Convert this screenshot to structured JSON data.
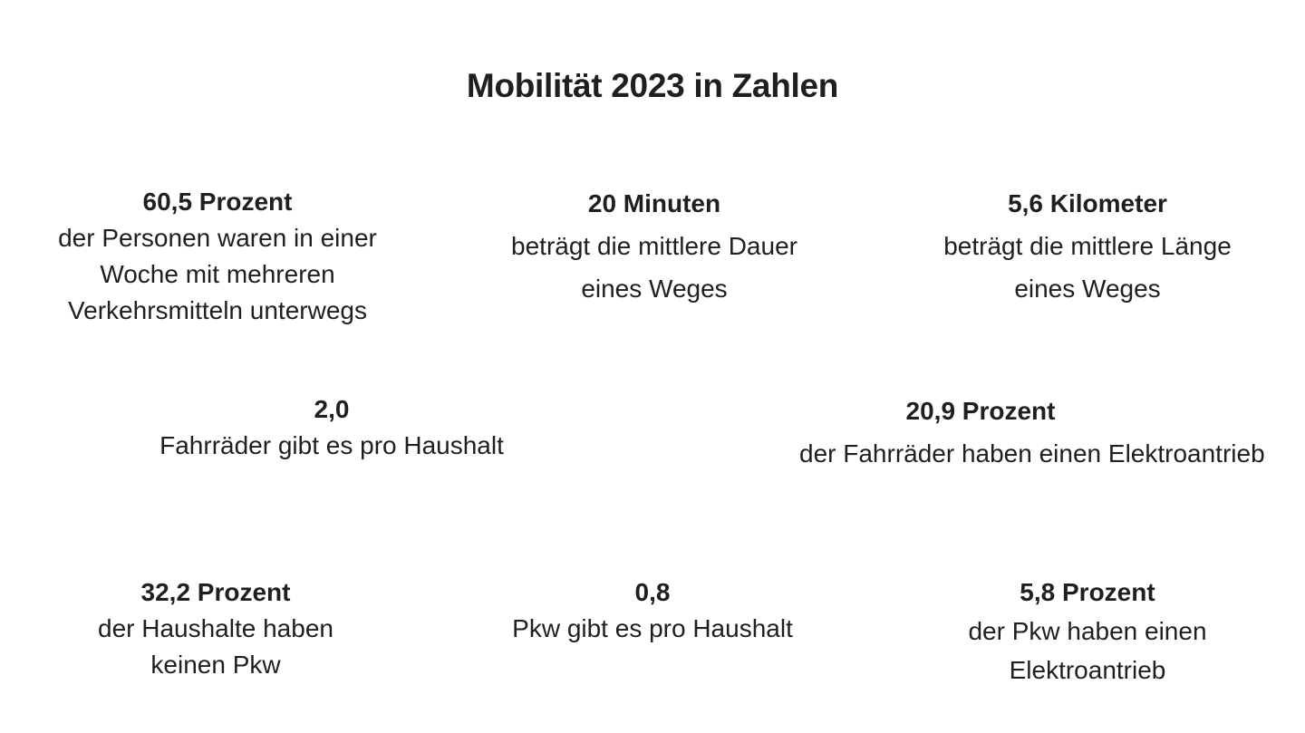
{
  "title": "Mobilität 2023 in Zahlen",
  "colors": {
    "background": "#ffffff",
    "text": "#1f1f1f"
  },
  "stats": [
    {
      "value": "60,5 Prozent",
      "lines": [
        "der Personen waren in einer",
        "Woche mit mehreren",
        "Verkehrsmitteln unterwegs"
      ]
    },
    {
      "value": "20 Minuten",
      "lines": [
        "beträgt die mittlere Dauer",
        "eines Weges"
      ]
    },
    {
      "value": "5,6 Kilometer",
      "lines": [
        "beträgt die mittlere Länge",
        "eines Weges"
      ]
    },
    {
      "value": "2,0",
      "lines": [
        "Fahrräder gibt es pro Haushalt"
      ]
    },
    {
      "value": "20,9 Prozent",
      "lines": [
        "der Fahrräder haben einen Elektroantrieb"
      ]
    },
    {
      "value": "32,2 Prozent",
      "lines": [
        "der Haushalte haben",
        "keinen Pkw"
      ]
    },
    {
      "value": "0,8",
      "lines": [
        "Pkw gibt es pro Haushalt"
      ]
    },
    {
      "value": "5,8 Prozent",
      "lines": [
        "der Pkw haben einen",
        "Elektroantrieb"
      ]
    }
  ]
}
